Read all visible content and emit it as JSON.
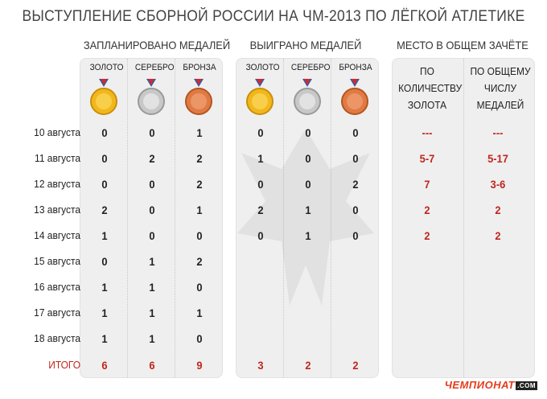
{
  "title": "ВЫСТУПЛЕНИЕ СБОРНОЙ РОССИИ НА ЧМ-2013 ПО ЛЁГКОЙ АТЛЕТИКЕ",
  "groups": {
    "planned": "ЗАПЛАНИРОВАНО МЕДАЛЕЙ",
    "won": "ВЫИГРАНО МЕДАЛЕЙ",
    "place": "МЕСТО В ОБЩЕМ ЗАЧЁТЕ"
  },
  "medal_headers": {
    "gold": "ЗОЛОТО",
    "silver": "СЕРЕБРО",
    "bronze": "БРОНЗА"
  },
  "place_headers": {
    "by_gold": [
      "ПО",
      "КОЛИЧЕСТВУ",
      "ЗОЛОТА"
    ],
    "by_total": [
      "ПО ОБЩЕМУ",
      "ЧИСЛУ",
      "МЕДАЛЕЙ"
    ]
  },
  "colors": {
    "gold": "#f2b71c",
    "silver": "#c8c8c8",
    "bronze": "#e07a45",
    "accent": "#c0261f",
    "panel": "#efefef"
  },
  "rows": [
    {
      "date": "10 августа",
      "planned": [
        "0",
        "0",
        "1"
      ],
      "won": [
        "0",
        "0",
        "0"
      ],
      "place": [
        "---",
        "---"
      ]
    },
    {
      "date": "11 августа",
      "planned": [
        "0",
        "2",
        "2"
      ],
      "won": [
        "1",
        "0",
        "0"
      ],
      "place": [
        "5-7",
        "5-17"
      ]
    },
    {
      "date": "12 августа",
      "planned": [
        "0",
        "0",
        "2"
      ],
      "won": [
        "0",
        "0",
        "2"
      ],
      "place": [
        "7",
        "3-6"
      ]
    },
    {
      "date": "13 августа",
      "planned": [
        "2",
        "0",
        "1"
      ],
      "won": [
        "2",
        "1",
        "0"
      ],
      "place": [
        "2",
        "2"
      ]
    },
    {
      "date": "14 августа",
      "planned": [
        "1",
        "0",
        "0"
      ],
      "won": [
        "0",
        "1",
        "0"
      ],
      "place": [
        "2",
        "2"
      ]
    },
    {
      "date": "15 августа",
      "planned": [
        "0",
        "1",
        "2"
      ],
      "won": [
        "",
        "",
        ""
      ],
      "place": [
        "",
        ""
      ]
    },
    {
      "date": "16 августа",
      "planned": [
        "1",
        "1",
        "0"
      ],
      "won": [
        "",
        "",
        ""
      ],
      "place": [
        "",
        ""
      ]
    },
    {
      "date": "17 августа",
      "planned": [
        "1",
        "1",
        "1"
      ],
      "won": [
        "",
        "",
        ""
      ],
      "place": [
        "",
        ""
      ]
    },
    {
      "date": "18 августа",
      "planned": [
        "1",
        "1",
        "0"
      ],
      "won": [
        "",
        "",
        ""
      ],
      "place": [
        "",
        ""
      ]
    }
  ],
  "totals": {
    "label": "ИТОГО",
    "planned": [
      "6",
      "6",
      "9"
    ],
    "won": [
      "3",
      "2",
      "2"
    ]
  },
  "logo": {
    "text": "ЧЕМПИОНАТ",
    "domain": ".COM"
  }
}
